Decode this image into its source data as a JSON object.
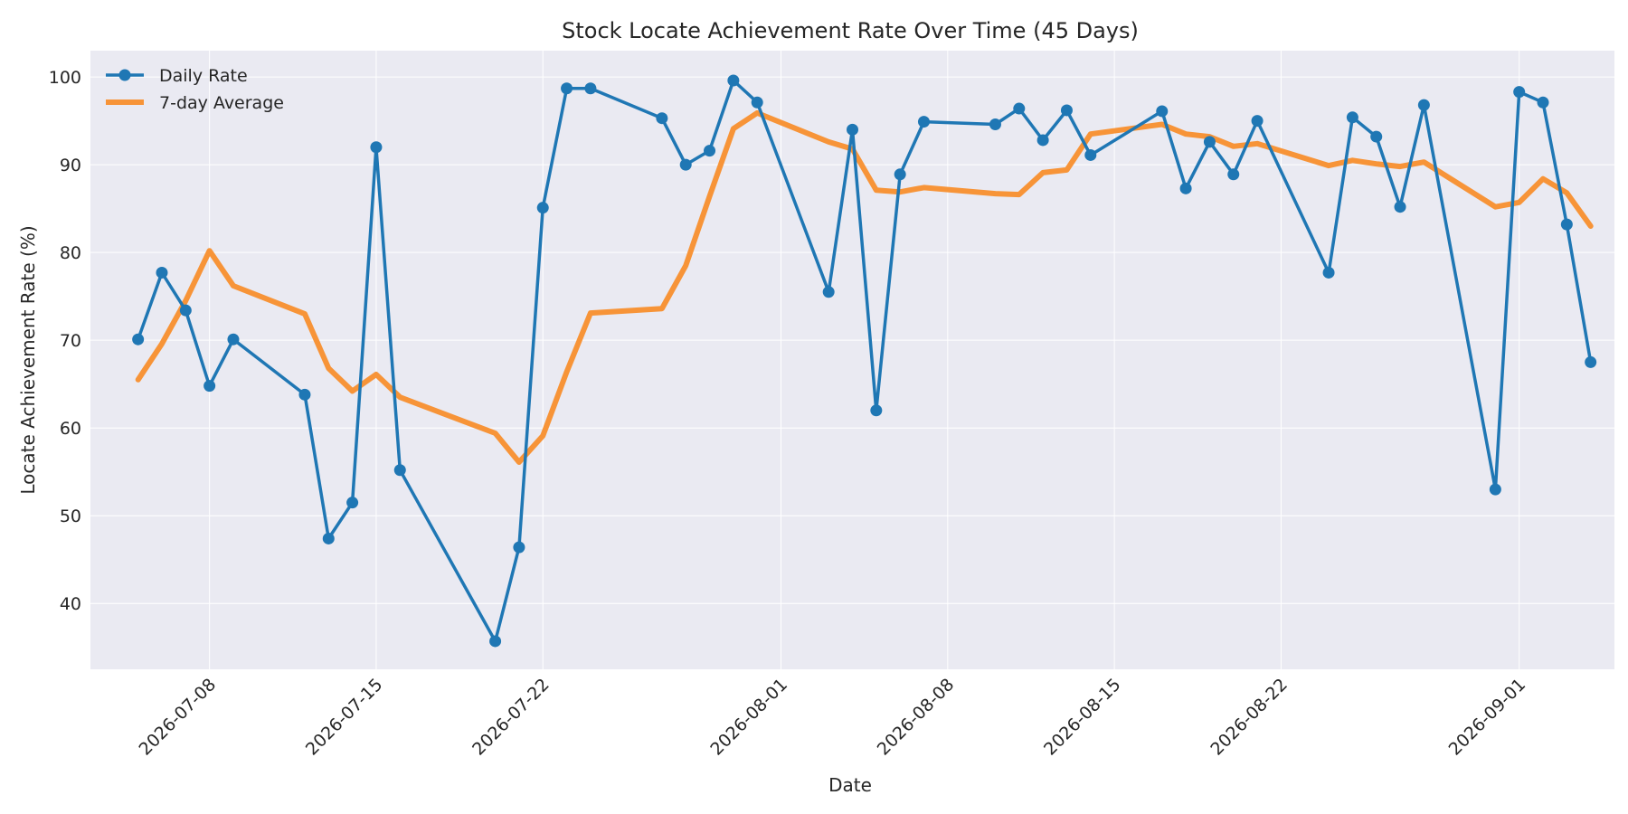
{
  "chart_data": {
    "type": "line",
    "title": "Stock Locate Achievement Rate Over Time (45 Days)",
    "xlabel": "Date",
    "ylabel": "Locate Achievement Rate (%)",
    "xlim": [
      "2026-07-03",
      "2026-09-05"
    ],
    "ylim": [
      32.5,
      103
    ],
    "x_ticks": [
      "2026-07-08",
      "2026-07-15",
      "2026-07-22",
      "2026-08-01",
      "2026-08-08",
      "2026-08-15",
      "2026-08-22",
      "2026-09-01"
    ],
    "y_ticks": [
      40,
      50,
      60,
      70,
      80,
      90,
      100
    ],
    "grid": true,
    "legend": "top-left",
    "colors": {
      "daily": "#1f77b4",
      "avg": "#f79438",
      "plot_bg": "#eaeaf2",
      "grid": "#ffffff"
    },
    "x": [
      "2026-07-05",
      "2026-07-06",
      "2026-07-07",
      "2026-07-08",
      "2026-07-09",
      "2026-07-12",
      "2026-07-13",
      "2026-07-14",
      "2026-07-15",
      "2026-07-16",
      "2026-07-20",
      "2026-07-21",
      "2026-07-22",
      "2026-07-23",
      "2026-07-24",
      "2026-07-27",
      "2026-07-28",
      "2026-07-29",
      "2026-07-30",
      "2026-07-31",
      "2026-08-03",
      "2026-08-04",
      "2026-08-05",
      "2026-08-06",
      "2026-08-07",
      "2026-08-10",
      "2026-08-11",
      "2026-08-12",
      "2026-08-13",
      "2026-08-14",
      "2026-08-17",
      "2026-08-18",
      "2026-08-19",
      "2026-08-20",
      "2026-08-21",
      "2026-08-24",
      "2026-08-25",
      "2026-08-26",
      "2026-08-27",
      "2026-08-28",
      "2026-08-31",
      "2026-09-01",
      "2026-09-02",
      "2026-09-03",
      "2026-09-04"
    ],
    "series": [
      {
        "name": "Daily Rate",
        "values": [
          70.1,
          77.7,
          73.4,
          64.8,
          70.1,
          63.8,
          47.4,
          51.5,
          92.0,
          55.2,
          35.7,
          46.4,
          85.1,
          98.7,
          98.7,
          95.3,
          90.0,
          91.6,
          99.6,
          97.1,
          75.5,
          94.0,
          62.0,
          88.9,
          94.9,
          94.6,
          96.4,
          92.8,
          96.2,
          91.1,
          96.1,
          87.3,
          92.6,
          88.9,
          95.0,
          77.7,
          95.4,
          93.2,
          85.2,
          96.8,
          53.0,
          98.3,
          97.1,
          83.2,
          67.5
        ]
      },
      {
        "name": "7-day Average",
        "values": [
          65.5,
          69.6,
          74.5,
          80.2,
          76.2,
          73.0,
          66.8,
          64.2,
          66.1,
          63.5,
          59.4,
          56.1,
          59.1,
          66.4,
          73.1,
          73.6,
          78.5,
          86.4,
          94.1,
          95.9,
          92.6,
          91.8,
          87.1,
          86.9,
          87.4,
          86.7,
          86.6,
          89.1,
          89.4,
          93.5,
          94.6,
          93.5,
          93.2,
          92.1,
          92.4,
          89.9,
          90.5,
          90.1,
          89.8,
          90.3,
          85.2,
          85.7,
          88.4,
          86.8,
          83.0
        ]
      }
    ]
  }
}
